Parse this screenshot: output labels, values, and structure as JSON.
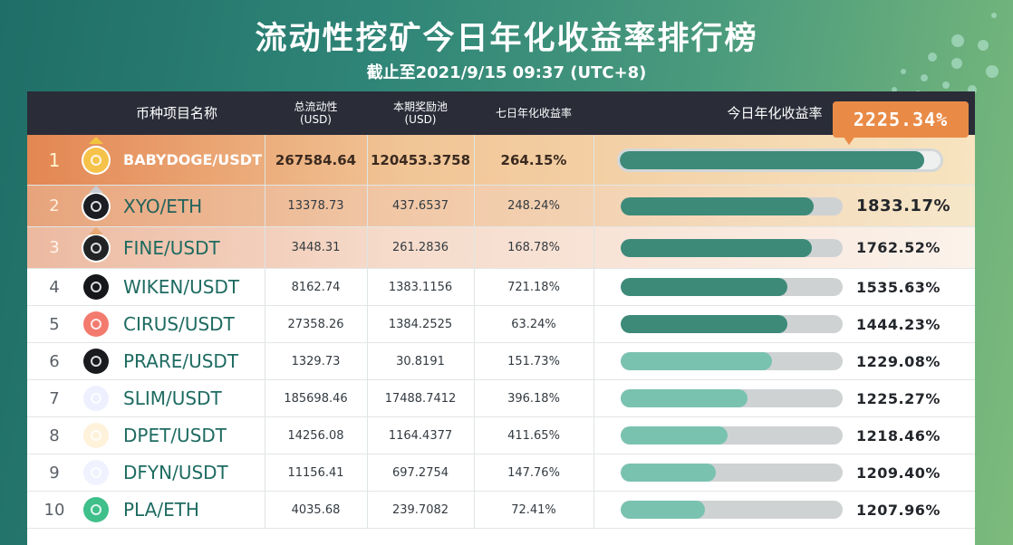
{
  "header": {
    "title": "流动性挖矿今日年化收益率排行榜",
    "subtitle": "截止至2021/9/15 09:37 (UTC+8)"
  },
  "columns": {
    "name": "币种项目名称",
    "liquidity": "总流动性",
    "liquidity_unit": "(USD)",
    "reward_pool": "本期奖励池",
    "reward_pool_unit": "(USD)",
    "seven_day_apy": "七日年化收益率",
    "today_apy": "今日年化收益率"
  },
  "top_callout": "2225.34%",
  "colors": {
    "dark_bar": "#3d8a79",
    "light_bar": "#79c2b0",
    "accent_orange": "#e98b47",
    "header_bg": "#2a2c38"
  },
  "rows": [
    {
      "rank": "1",
      "pair": "BABYDOGE/USDT",
      "liquidity": "267584.64",
      "reward_pool": "120453.3758",
      "seven_day": "264.15%",
      "today": "",
      "bar": 0.95,
      "icon": "babydoge-coin-icon",
      "icon_bg": "#f6c24a",
      "crown": true
    },
    {
      "rank": "2",
      "pair": "XYO/ETH",
      "liquidity": "13378.73",
      "reward_pool": "437.6537",
      "seven_day": "248.24%",
      "today": "1833.17%",
      "bar": 0.87,
      "icon": "xyo-coin-icon",
      "icon_bg": "#1b1d22",
      "crown": true
    },
    {
      "rank": "3",
      "pair": "FINE/USDT",
      "liquidity": "3448.31",
      "reward_pool": "261.2836",
      "seven_day": "168.78%",
      "today": "1762.52%",
      "bar": 0.86,
      "icon": "fine-coin-icon",
      "icon_bg": "#222325",
      "crown": true
    },
    {
      "rank": "4",
      "pair": "WIKEN/USDT",
      "liquidity": "8162.74",
      "reward_pool": "1383.1156",
      "seven_day": "721.18%",
      "today": "1535.63%",
      "bar": 0.75,
      "icon": "wiken-coin-icon",
      "icon_bg": "#15171a",
      "crown": false
    },
    {
      "rank": "5",
      "pair": "CIRUS/USDT",
      "liquidity": "27358.26",
      "reward_pool": "1384.2525",
      "seven_day": "63.24%",
      "today": "1444.23%",
      "bar": 0.75,
      "icon": "cirus-coin-icon",
      "icon_bg": "#f37b6e",
      "crown": false
    },
    {
      "rank": "6",
      "pair": "PRARE/USDT",
      "liquidity": "1329.73",
      "reward_pool": "30.8191",
      "seven_day": "151.73%",
      "today": "1229.08%",
      "bar": 0.68,
      "icon": "prare-coin-icon",
      "icon_bg": "#1a1b1f",
      "crown": false
    },
    {
      "rank": "7",
      "pair": "SLIM/USDT",
      "liquidity": "185698.46",
      "reward_pool": "17488.7412",
      "seven_day": "396.18%",
      "today": "1225.27%",
      "bar": 0.57,
      "icon": "slim-coin-icon",
      "icon_bg": "#eef0ff",
      "crown": false
    },
    {
      "rank": "8",
      "pair": "DPET/USDT",
      "liquidity": "14256.08",
      "reward_pool": "1164.4377",
      "seven_day": "411.65%",
      "today": "1218.46%",
      "bar": 0.48,
      "icon": "dpet-coin-icon",
      "icon_bg": "#fff2da",
      "crown": false
    },
    {
      "rank": "9",
      "pair": "DFYN/USDT",
      "liquidity": "11156.41",
      "reward_pool": "697.2754",
      "seven_day": "147.76%",
      "today": "1209.40%",
      "bar": 0.43,
      "icon": "dfyn-coin-icon",
      "icon_bg": "#f1f2ff",
      "crown": false
    },
    {
      "rank": "10",
      "pair": "PLA/ETH",
      "liquidity": "4035.68",
      "reward_pool": "239.7082",
      "seven_day": "72.41%",
      "today": "1207.96%",
      "bar": 0.38,
      "icon": "pla-coin-icon",
      "icon_bg": "#3fbf8a",
      "crown": false
    }
  ]
}
